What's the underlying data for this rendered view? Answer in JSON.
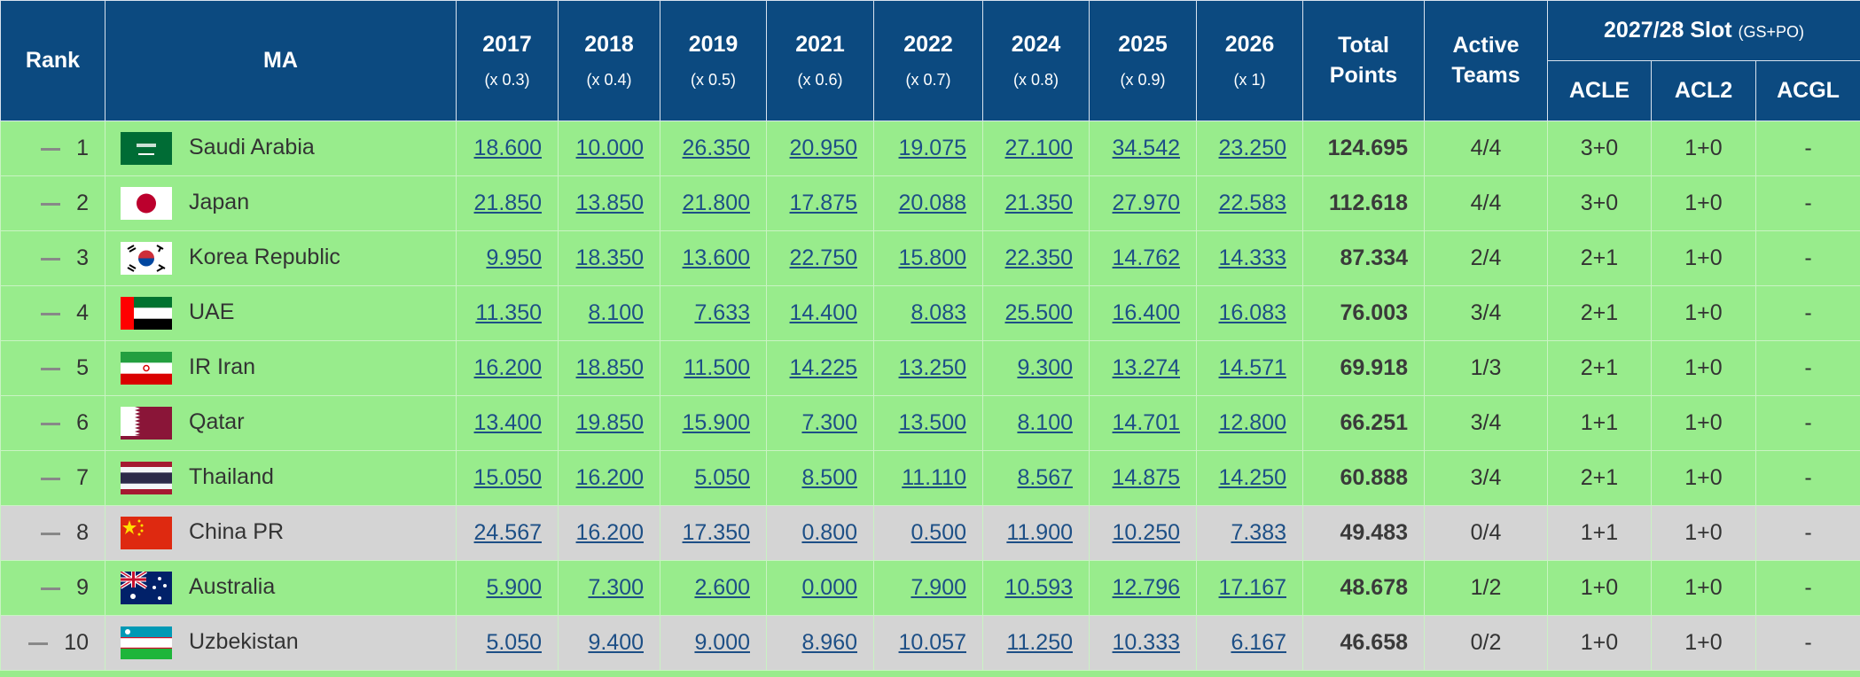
{
  "table": {
    "header": {
      "rank": "Rank",
      "ma": "MA",
      "years": [
        {
          "year": "2017",
          "multiplier": "(x 0.3)"
        },
        {
          "year": "2018",
          "multiplier": "(x 0.4)"
        },
        {
          "year": "2019",
          "multiplier": "(x 0.5)"
        },
        {
          "year": "2021",
          "multiplier": "(x 0.6)"
        },
        {
          "year": "2022",
          "multiplier": "(x 0.7)"
        },
        {
          "year": "2024",
          "multiplier": "(x 0.8)"
        },
        {
          "year": "2025",
          "multiplier": "(x 0.9)"
        },
        {
          "year": "2026",
          "multiplier": "(x 1)"
        }
      ],
      "total": "Total Points",
      "active": "Active Teams",
      "slot": {
        "title": "2027/28 Slot",
        "note": "(GS+PO)",
        "columns": [
          "ACLE",
          "ACL2",
          "ACGL"
        ]
      }
    },
    "rows": [
      {
        "rank": 1,
        "ma": "Saudi Arabia",
        "points": [
          "18.600",
          "10.000",
          "26.350",
          "20.950",
          "19.075",
          "27.100",
          "34.542",
          "23.250"
        ],
        "total": "124.695",
        "active": "4/4",
        "slots": [
          "3+0",
          "1+0",
          "-"
        ],
        "background": "#98ec8c"
      },
      {
        "rank": 2,
        "ma": "Japan",
        "points": [
          "21.850",
          "13.850",
          "21.800",
          "17.875",
          "20.088",
          "21.350",
          "27.970",
          "22.583"
        ],
        "total": "112.618",
        "active": "4/4",
        "slots": [
          "3+0",
          "1+0",
          "-"
        ],
        "background": "#98ec8c"
      },
      {
        "rank": 3,
        "ma": "Korea Republic",
        "points": [
          "9.950",
          "18.350",
          "13.600",
          "22.750",
          "15.800",
          "22.350",
          "14.762",
          "14.333"
        ],
        "total": "87.334",
        "active": "2/4",
        "slots": [
          "2+1",
          "1+0",
          "-"
        ],
        "background": "#98ec8c"
      },
      {
        "rank": 4,
        "ma": "UAE",
        "points": [
          "11.350",
          "8.100",
          "7.633",
          "14.400",
          "8.083",
          "25.500",
          "16.400",
          "16.083"
        ],
        "total": "76.003",
        "active": "3/4",
        "slots": [
          "2+1",
          "1+0",
          "-"
        ],
        "background": "#98ec8c"
      },
      {
        "rank": 5,
        "ma": "IR Iran",
        "points": [
          "16.200",
          "18.850",
          "11.500",
          "14.225",
          "13.250",
          "9.300",
          "13.274",
          "14.571"
        ],
        "total": "69.918",
        "active": "1/3",
        "slots": [
          "2+1",
          "1+0",
          "-"
        ],
        "background": "#98ec8c"
      },
      {
        "rank": 6,
        "ma": "Qatar",
        "points": [
          "13.400",
          "19.850",
          "15.900",
          "7.300",
          "13.500",
          "8.100",
          "14.701",
          "12.800"
        ],
        "total": "66.251",
        "active": "3/4",
        "slots": [
          "1+1",
          "1+0",
          "-"
        ],
        "background": "#98ec8c"
      },
      {
        "rank": 7,
        "ma": "Thailand",
        "points": [
          "15.050",
          "16.200",
          "5.050",
          "8.500",
          "11.110",
          "8.567",
          "14.875",
          "14.250"
        ],
        "total": "60.888",
        "active": "3/4",
        "slots": [
          "2+1",
          "1+0",
          "-"
        ],
        "background": "#98ec8c"
      },
      {
        "rank": 8,
        "ma": "China PR",
        "points": [
          "24.567",
          "16.200",
          "17.350",
          "0.800",
          "0.500",
          "11.900",
          "10.250",
          "7.383"
        ],
        "total": "49.483",
        "active": "0/4",
        "slots": [
          "1+1",
          "1+0",
          "-"
        ],
        "background": "#d4d4d4"
      },
      {
        "rank": 9,
        "ma": "Australia",
        "points": [
          "5.900",
          "7.300",
          "2.600",
          "0.000",
          "7.900",
          "10.593",
          "12.796",
          "17.167"
        ],
        "total": "48.678",
        "active": "1/2",
        "slots": [
          "1+0",
          "1+0",
          "-"
        ],
        "background": "#98ec8c"
      },
      {
        "rank": 10,
        "ma": "Uzbekistan",
        "points": [
          "5.050",
          "9.400",
          "9.000",
          "8.960",
          "10.057",
          "11.250",
          "10.333",
          "6.167"
        ],
        "total": "46.658",
        "active": "0/2",
        "slots": [
          "1+0",
          "1+0",
          "-"
        ],
        "background": "#d4d4d4"
      }
    ]
  }
}
